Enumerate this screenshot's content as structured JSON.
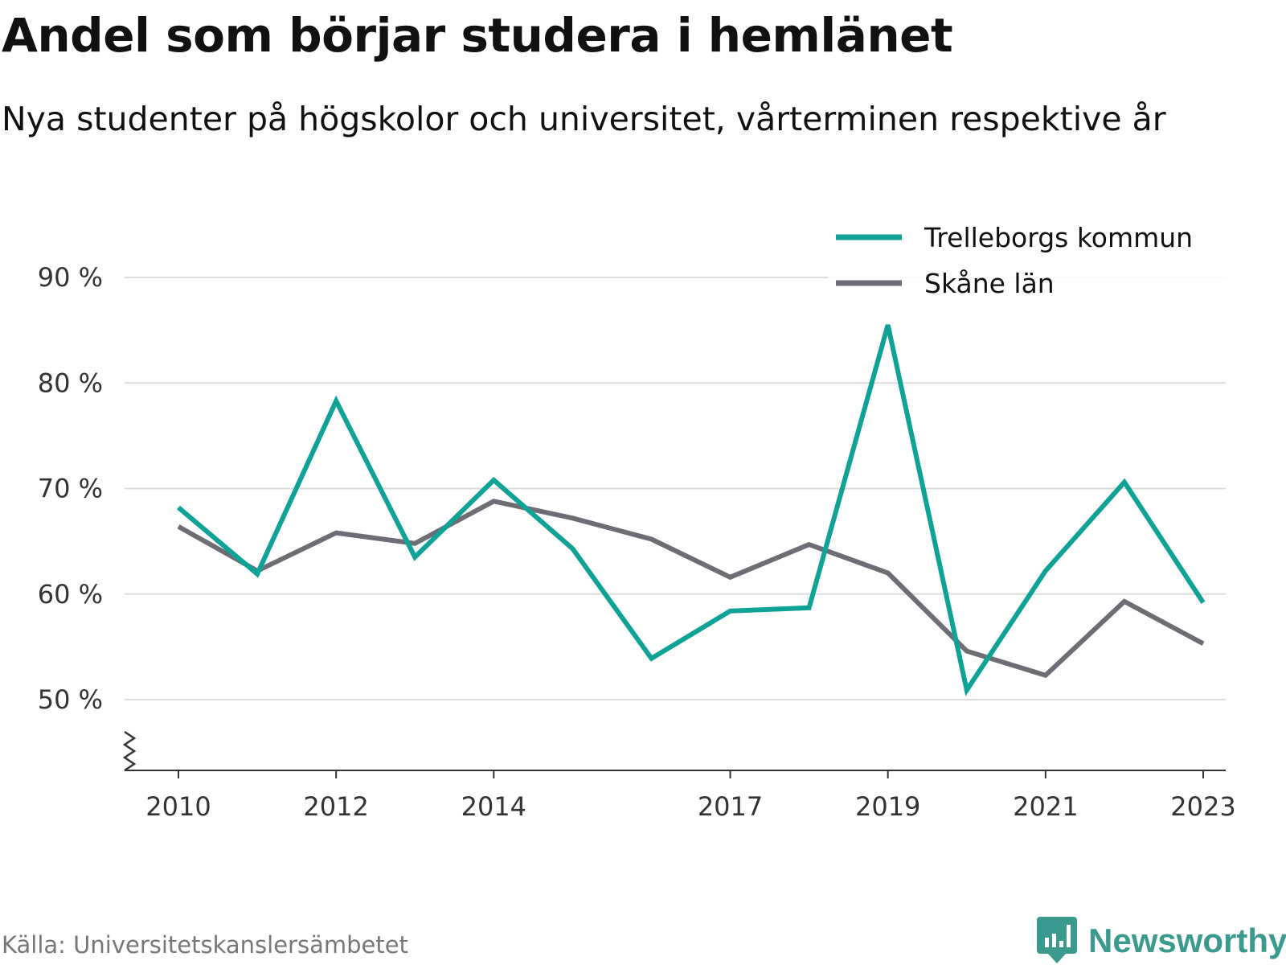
{
  "title": "Andel som börjar studera i hemlänet",
  "subtitle": "Nya studenter på högskolor och universitet, vårterminen respektive år",
  "source": "Källa: Universitetskanslersämbetet",
  "brand": "Newsworthy",
  "colors": {
    "trelleborg": "#0fa398",
    "skane": "#6e6d75",
    "grid": "#dddddd",
    "axis": "#333333",
    "brand": "#3a9a8e"
  },
  "chart_data": {
    "type": "line",
    "x": [
      2010,
      2011,
      2012,
      2013,
      2014,
      2015,
      2016,
      2017,
      2018,
      2019,
      2020,
      2021,
      2022,
      2023
    ],
    "x_tick_labels": [
      "2010",
      "2012",
      "2014",
      "2017",
      "2019",
      "2021",
      "2023"
    ],
    "y_tick_labels": [
      "50 %",
      "60 %",
      "70 %",
      "80 %",
      "90 %"
    ],
    "y_ticks": [
      50,
      60,
      70,
      80,
      90
    ],
    "ylim": [
      43.3,
      90
    ],
    "xlim": [
      2009.4,
      2023.7
    ],
    "y_axis_break": true,
    "grid": true,
    "legend_position": "top-right",
    "series": [
      {
        "name": "Trelleborgs kommun",
        "color": "#0fa398",
        "values": [
          68.2,
          61.9,
          78.3,
          63.5,
          70.8,
          64.3,
          53.9,
          58.4,
          58.7,
          85.5,
          50.9,
          62.2,
          70.6,
          59.2
        ]
      },
      {
        "name": "Skåne län",
        "color": "#6e6d75",
        "values": [
          66.4,
          62.2,
          65.8,
          64.8,
          68.8,
          67.2,
          65.2,
          61.6,
          64.7,
          62.0,
          54.6,
          52.3,
          59.3,
          55.3
        ]
      }
    ]
  }
}
